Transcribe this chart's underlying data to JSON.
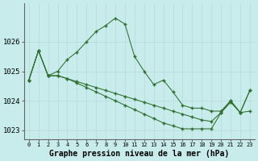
{
  "title": "Graphe pression niveau de la mer (hPa)",
  "bg_color": "#c8ecec",
  "grid_color": "#b8d8d8",
  "line_color": "#2d6e2d",
  "marker": "+",
  "hours": [
    0,
    1,
    2,
    3,
    4,
    5,
    6,
    7,
    8,
    9,
    10,
    11,
    12,
    13,
    14,
    15,
    16,
    17,
    18,
    19,
    20,
    21,
    22,
    23
  ],
  "series": [
    [
      1024.7,
      1025.7,
      1024.85,
      1025.0,
      1025.4,
      1025.65,
      1026.0,
      1026.35,
      1026.55,
      1026.8,
      1026.6,
      1025.5,
      1025.0,
      1024.55,
      1024.7,
      1024.3,
      1023.85,
      1023.75,
      1023.75,
      1023.65,
      1023.65,
      1024.0,
      1023.6,
      1023.65
    ],
    [
      1024.7,
      1025.7,
      1024.85,
      1024.85,
      1024.75,
      1024.65,
      1024.55,
      1024.45,
      1024.35,
      1024.25,
      1024.15,
      1024.05,
      1023.95,
      1023.85,
      1023.75,
      1023.65,
      1023.55,
      1023.45,
      1023.35,
      1023.3,
      1023.6,
      1023.95,
      1023.6,
      1024.35
    ],
    [
      1024.7,
      1025.7,
      1024.85,
      1024.85,
      1024.75,
      1024.6,
      1024.45,
      1024.3,
      1024.15,
      1024.0,
      1023.85,
      1023.7,
      1023.55,
      1023.4,
      1023.25,
      1023.15,
      1023.05,
      1023.05,
      1023.05,
      1023.05,
      1023.6,
      1024.0,
      1023.6,
      1024.35
    ]
  ],
  "ylim_min": 1022.7,
  "ylim_max": 1027.3,
  "ytick_top": 1026,
  "ytick_labels": [
    "1023",
    "1024",
    "1025",
    "1026"
  ],
  "ytick_values": [
    1023,
    1024,
    1025,
    1026
  ],
  "xticks": [
    0,
    1,
    2,
    3,
    4,
    5,
    6,
    7,
    8,
    9,
    10,
    11,
    12,
    13,
    14,
    15,
    16,
    17,
    18,
    19,
    20,
    21,
    22,
    23
  ]
}
